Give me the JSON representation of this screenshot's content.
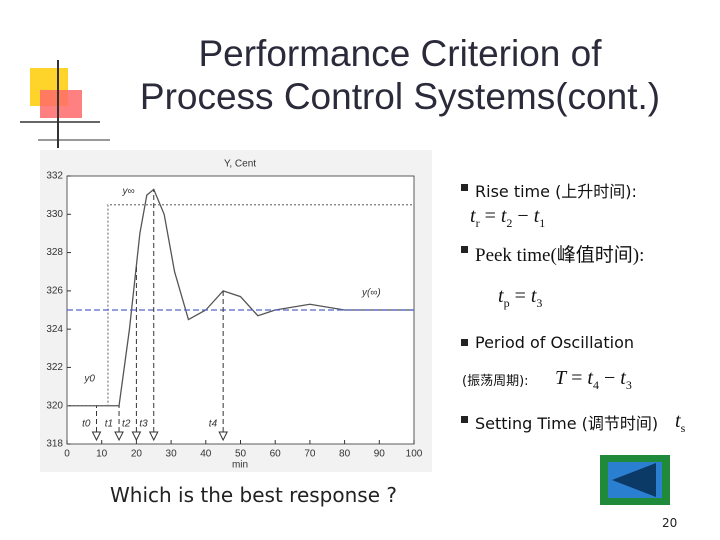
{
  "header": {
    "title_lines": [
      "Performance Criterion of",
      "Process Control Systems(cont.)"
    ]
  },
  "chart_data": {
    "type": "line",
    "title": "Y, Cent",
    "x_label": "min",
    "xlim": [
      0,
      100
    ],
    "xticks": [
      0,
      10,
      20,
      30,
      40,
      50,
      60,
      70,
      80,
      90,
      100
    ],
    "ylim": [
      318,
      332
    ],
    "yticks": [
      318,
      320,
      322,
      324,
      326,
      328,
      330,
      332
    ],
    "series": [
      {
        "color": "#555555",
        "style": "solid",
        "x": [
          0,
          10,
          15,
          18,
          21,
          23,
          25,
          28,
          31,
          35,
          40,
          45,
          50,
          55,
          60,
          70,
          80,
          90,
          100
        ],
        "values": [
          320,
          320,
          320,
          324,
          329,
          331,
          331.3,
          330,
          327,
          324.5,
          325,
          326,
          325.7,
          324.7,
          325,
          325.3,
          325,
          325,
          325
        ]
      },
      {
        "color": "#777777",
        "style": "dotted",
        "x": [
          0,
          11.8,
          11.8,
          100
        ],
        "values": [
          320,
          320,
          330.5,
          330.5
        ]
      },
      {
        "color": "#5566cc",
        "style": "dashed",
        "x": [
          0,
          100
        ],
        "values": [
          325,
          325
        ]
      }
    ],
    "annotations": [
      {
        "text": "y∞",
        "x": 16,
        "y": 331.2
      },
      {
        "text": "y(∞)",
        "x": 85,
        "y": 325.9
      },
      {
        "text": "y0",
        "x": 5,
        "y": 321.4
      }
    ],
    "markers": [
      {
        "label": "t0",
        "x": 8.5
      },
      {
        "label": "t1",
        "x": 15
      },
      {
        "label": "t2",
        "x": 20
      },
      {
        "label": "t3",
        "x": 25
      },
      {
        "label": "t4",
        "x": 45
      }
    ]
  },
  "bullets": [
    {
      "text": "Rise time (上升时间):",
      "formula": [
        {
          "sym": "t",
          "sub": "r"
        },
        " = ",
        {
          "sym": "t",
          "sub": "2"
        },
        " − ",
        {
          "sym": "t",
          "sub": "1"
        }
      ]
    },
    {
      "text": "Peek time(峰值时间):",
      "formula": [
        {
          "sym": "t",
          "sub": "p"
        },
        " = ",
        {
          "sym": "t",
          "sub": "3"
        }
      ]
    },
    {
      "text": "Period of Oscillation",
      "note": "(振荡周期):",
      "formula": [
        {
          "sym": "T"
        },
        " = ",
        {
          "sym": "t",
          "sub": "4"
        },
        " − ",
        {
          "sym": "t",
          "sub": "3"
        }
      ]
    },
    {
      "text": "Setting Time (调节时间)",
      "formula": [
        {
          "sym": "t",
          "sub": "s"
        }
      ]
    }
  ],
  "question": "Which is the best response ?",
  "page_number": "20"
}
